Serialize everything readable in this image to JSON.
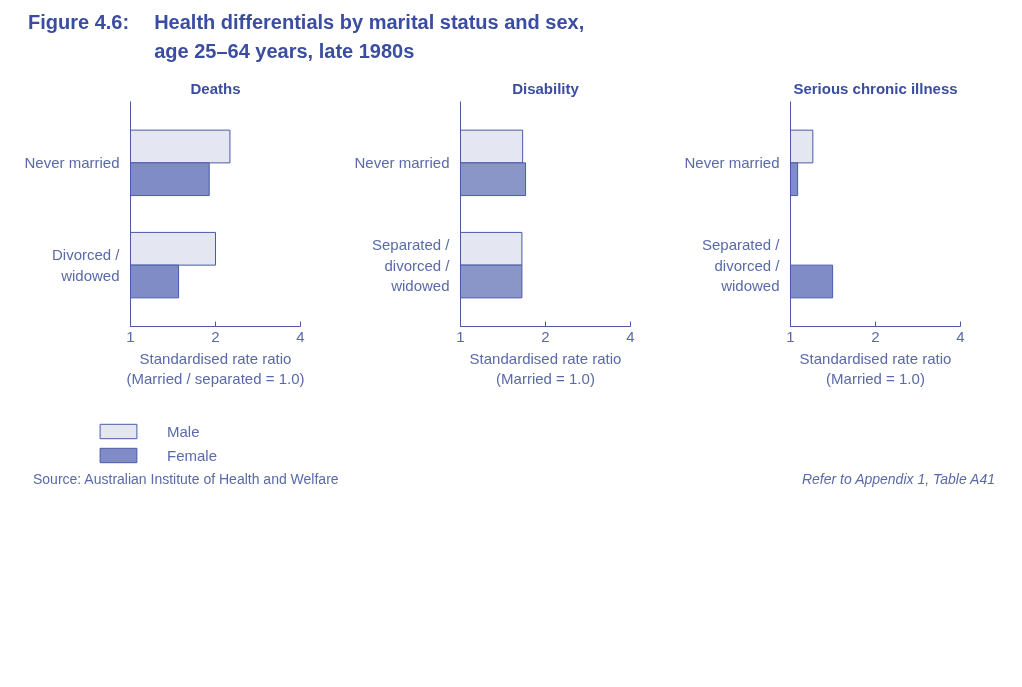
{
  "chart_data": [
    {
      "type": "bar",
      "orientation": "horizontal",
      "title": "Deaths",
      "categories": [
        "Never married",
        "Divorced / widowed"
      ],
      "xlabel": "Standardised rate ratio (Married / separated = 1.0)",
      "log": "x",
      "xlim": [
        1,
        4
      ],
      "xticks": [
        1,
        2,
        4
      ],
      "grid": false,
      "legend": "bottom left",
      "series": [
        {
          "name": "Male",
          "color": "#e4e7f1",
          "values": [
            2.25,
            2.0
          ]
        },
        {
          "name": "Female",
          "color": "#7f8cc6",
          "values": [
            1.9,
            1.48
          ]
        }
      ],
      "annotations": [
        "Figure 4.6:   Health differentials by marital status and sex, age 25–64 years, late 1980s",
        "Source: Australian Institute of Health and Welfare",
        "Refer to Appendix 1, Table A41"
      ]
    },
    {
      "type": "bar",
      "orientation": "horizontal",
      "title": "Disability",
      "categories": [
        "Never married",
        "Separated / divorced / widowed"
      ],
      "xlabel": "Standardised rate ratio (Married = 1.0)",
      "log": "x",
      "xlim": [
        1,
        4
      ],
      "xticks": [
        1,
        2,
        4
      ],
      "grid": false,
      "series": [
        {
          "color": "#e4e7f1",
          "values": [
            1.66,
            1.65
          ]
        },
        {
          "color": "#8a96c8",
          "values": [
            1.7,
            1.65
          ]
        }
      ]
    },
    {
      "type": "bar",
      "orientation": "horizontal",
      "title": "Serious chronic illness",
      "categories": [
        "Never married",
        "Separated / divorced / widowed"
      ],
      "xlabel": "Standardised rate ratio (Married = 1.0)",
      "log": "x",
      "xlim": [
        1,
        4
      ],
      "xticks": [
        1,
        2,
        4
      ],
      "grid": false,
      "series": [
        {
          "color": "#e4e7f1",
          "values": [
            1.2,
            null
          ]
        },
        {
          "color": "#7f8cc6",
          "values": [
            1.06,
            1.41
          ]
        }
      ]
    }
  ]
}
